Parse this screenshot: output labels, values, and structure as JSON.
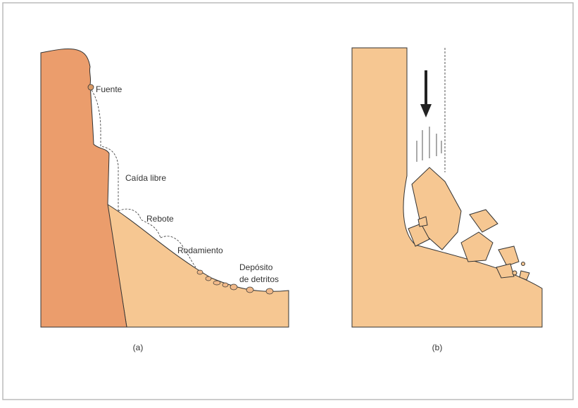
{
  "panel_a": {
    "caption": "(a)",
    "labels": [
      "Fuente",
      "Caída libre",
      "Rebote",
      "Rodamiento",
      "Depósito",
      "de detritos"
    ]
  },
  "panel_b": {
    "caption": "(b)"
  }
}
